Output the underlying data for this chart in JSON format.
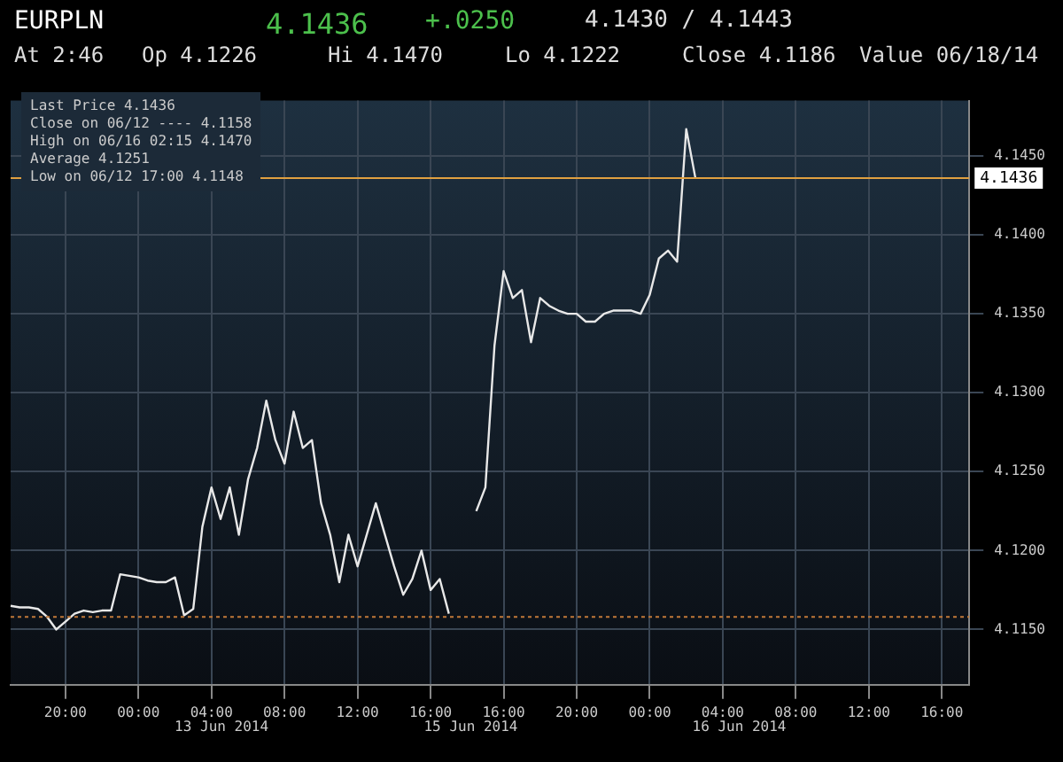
{
  "chart_data": {
    "type": "line",
    "title": "EURPLN",
    "annotations": [
      "4.1436",
      "+.0250",
      "4.1430 / 4.1443",
      "At 2:46",
      "Op 4.1226",
      "Hi 4.1470",
      "Lo 4.1222",
      "Close 4.1186",
      "Value 06/18/14",
      "Last Price 4.1436",
      "Close on 06/12 ---- 4.1158",
      "High on 06/16 02:15 4.1470",
      "Average 4.1251",
      "Low on 06/12 17:00 4.1148",
      "13 Jun 2014",
      "15 Jun 2014",
      "16 Jun 2014"
    ],
    "categories": [
      null,
      null,
      null,
      null,
      null,
      null,
      "20:00",
      null,
      null,
      null,
      null,
      null,
      null,
      null,
      "00:00",
      null,
      null,
      null,
      null,
      null,
      null,
      null,
      "04:00",
      null,
      null,
      null,
      null,
      null,
      null,
      null,
      "08:00",
      null,
      null,
      null,
      null,
      null,
      null,
      null,
      "12:00",
      null,
      null,
      null,
      null,
      null,
      null,
      null,
      "16:00",
      null,
      null,
      null,
      null,
      null,
      null,
      null,
      "16:00",
      null,
      null,
      null,
      null,
      null,
      null,
      null,
      "20:00",
      null,
      null,
      null,
      null,
      null,
      null,
      null,
      "00:00",
      null,
      null,
      null,
      null,
      null,
      null,
      null,
      "04:00",
      null,
      null,
      null,
      null,
      null,
      null,
      null,
      "08:00",
      null,
      null,
      null,
      null,
      null,
      null,
      null,
      "12:00",
      null,
      null,
      null,
      null,
      null,
      null,
      null,
      "16:00",
      null,
      null,
      null
    ],
    "series": [
      {
        "color": "#e8e8e8",
        "values": [
          4.1165,
          4.1164,
          4.1164,
          4.1163,
          4.1158,
          4.115,
          4.1155,
          4.116,
          4.1162,
          4.1161,
          4.1162,
          4.1162,
          4.1185,
          4.1184,
          4.1183,
          4.1181,
          4.118,
          4.118,
          4.1183,
          4.1159,
          4.1163,
          4.1215,
          4.124,
          4.122,
          4.124,
          4.121,
          4.1245,
          4.1265,
          4.1295,
          4.127,
          4.1255,
          4.1288,
          4.1265,
          4.127,
          4.123,
          4.121,
          4.118,
          4.121,
          4.119,
          4.121,
          4.123,
          4.121,
          4.119,
          4.1172,
          4.1182,
          4.12,
          4.1175,
          4.1182,
          4.116,
          null,
          null,
          4.1225,
          4.124,
          4.133,
          4.1377,
          4.136,
          4.1365,
          4.1332,
          4.136,
          4.1355,
          4.1352,
          4.135,
          4.135,
          4.1345,
          4.1345,
          4.135,
          4.1352,
          4.1352,
          4.1352,
          4.135,
          4.1362,
          4.1385,
          4.139,
          4.1383,
          4.1467,
          4.1436,
          null,
          null,
          null,
          null,
          null,
          null,
          null,
          null,
          null,
          null,
          null,
          null,
          null,
          null,
          null,
          null,
          null,
          null,
          null,
          null,
          null,
          null,
          null,
          null,
          null,
          null,
          null,
          null,
          null,
          null
        ]
      }
    ],
    "ylim": [
      4.1115,
      4.1485
    ],
    "yticks": [
      {
        "value": 4.115,
        "label": "4.1150"
      },
      {
        "value": 4.12,
        "label": "4.1200"
      },
      {
        "value": 4.125,
        "label": "4.1250"
      },
      {
        "value": 4.13,
        "label": "4.1300"
      },
      {
        "value": 4.135,
        "label": "4.1350"
      },
      {
        "value": 4.14,
        "label": "4.1400"
      },
      {
        "value": 4.145,
        "label": "4.1450"
      }
    ],
    "ref_lines": [
      {
        "axis": "y",
        "value": 4.1436,
        "label": "4.1436",
        "color": "#e0a040",
        "line_style": "solid"
      },
      {
        "axis": "y",
        "value": 4.1158,
        "color": "#c07838",
        "line_style": "dotted"
      }
    ],
    "grid": true,
    "legend": false,
    "marker": "none",
    "line_style": "solid"
  }
}
